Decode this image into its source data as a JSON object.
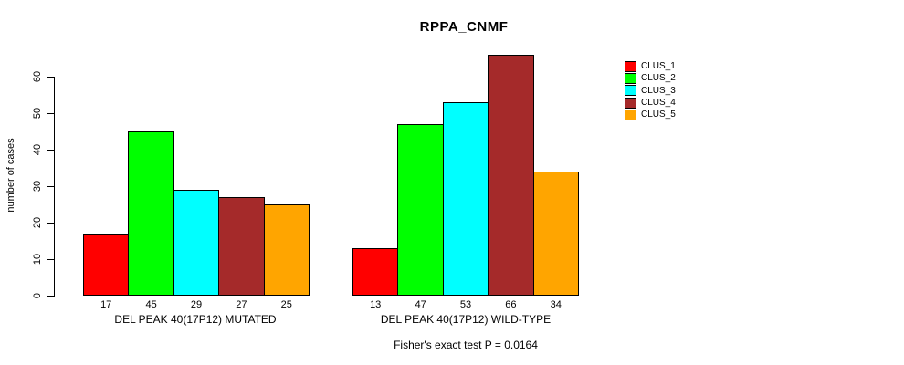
{
  "chart_data": {
    "type": "bar",
    "title": "RPPA_CNMF",
    "xlabel": "",
    "ylabel": "number of cases",
    "ylim": [
      0,
      66
    ],
    "yticks": [
      0,
      10,
      20,
      30,
      40,
      50,
      60
    ],
    "grid": false,
    "categories": [
      "DEL PEAK 40(17P12) MUTATED",
      "DEL PEAK 40(17P12) WILD-TYPE"
    ],
    "series": [
      {
        "name": "CLUS_1",
        "color": "#FF0000",
        "values": [
          17,
          13
        ]
      },
      {
        "name": "CLUS_2",
        "color": "#00FF00",
        "values": [
          45,
          47
        ]
      },
      {
        "name": "CLUS_3",
        "color": "#00FFFF",
        "values": [
          29,
          53
        ]
      },
      {
        "name": "CLUS_4",
        "color": "#A52A2A",
        "values": [
          27,
          66
        ]
      },
      {
        "name": "CLUS_5",
        "color": "#FFA500",
        "values": [
          25,
          34
        ]
      }
    ],
    "bar_value_labels": {
      "DEL PEAK 40(17P12) MUTATED": [
        17,
        45,
        29,
        27,
        25
      ],
      "DEL PEAK 40(17P12) WILD-TYPE": [
        13,
        47,
        53,
        66,
        34
      ]
    },
    "legend": {
      "position": "right-outside",
      "entries": [
        "CLUS_1",
        "CLUS_2",
        "CLUS_3",
        "CLUS_4",
        "CLUS_5"
      ]
    },
    "annotation": "Fisher's exact test P = 0.0164",
    "axis_color": "#000000",
    "bar_border_color": "#000000"
  }
}
